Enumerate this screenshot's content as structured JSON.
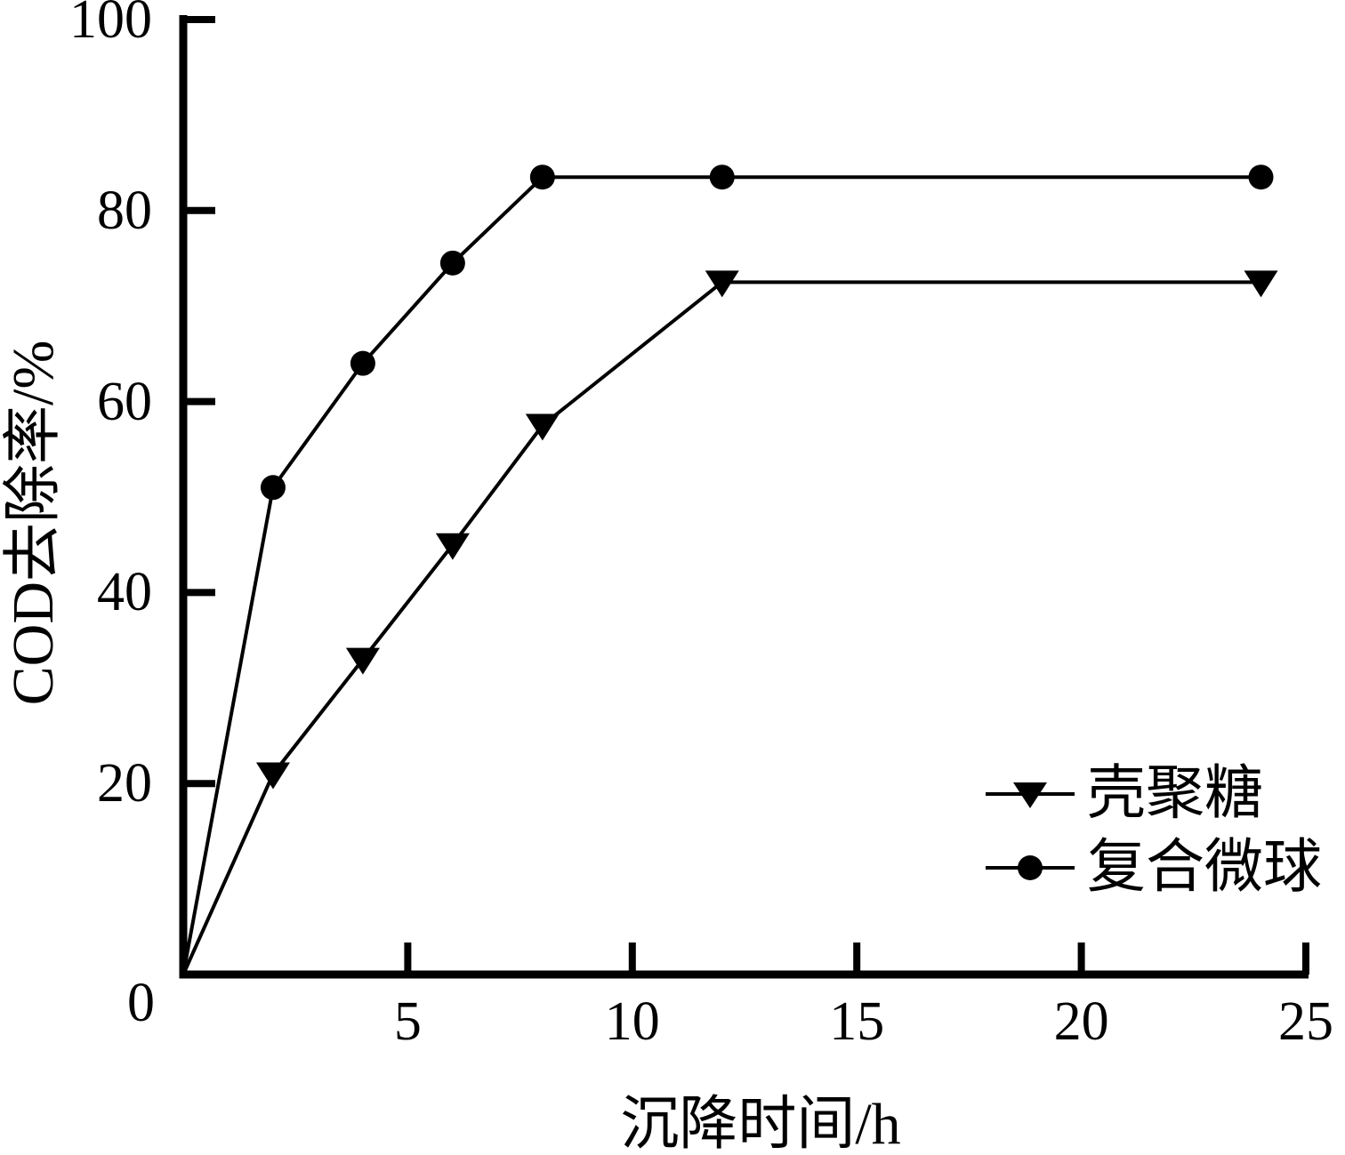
{
  "figure": {
    "background": "#ffffff",
    "ink_color": "#000000"
  },
  "chart_data": {
    "type": "line",
    "title": "",
    "xlabel": "沉降时间/h",
    "ylabel": "COD去除率/%",
    "xlim": [
      0,
      25
    ],
    "ylim": [
      0,
      100
    ],
    "x_ticks": [
      5,
      10,
      15,
      20,
      25
    ],
    "y_ticks": [
      20,
      40,
      60,
      80,
      100
    ],
    "origin_tick_label": "0",
    "grid": false,
    "legend_position": "inside-lower-right",
    "series": [
      {
        "name": "壳聚糖",
        "marker": "triangle-down",
        "color": "#000000",
        "points": [
          [
            0,
            0
          ],
          [
            2,
            21
          ],
          [
            4,
            33
          ],
          [
            6,
            45
          ],
          [
            8,
            57.5
          ],
          [
            12,
            72.5
          ],
          [
            24,
            72.5
          ]
        ]
      },
      {
        "name": "复合微球",
        "marker": "circle",
        "color": "#000000",
        "points": [
          [
            0,
            0
          ],
          [
            2,
            51
          ],
          [
            4,
            64
          ],
          [
            6,
            74.5
          ],
          [
            8,
            83.5
          ],
          [
            12,
            83.5
          ],
          [
            24,
            83.5
          ]
        ]
      }
    ]
  }
}
